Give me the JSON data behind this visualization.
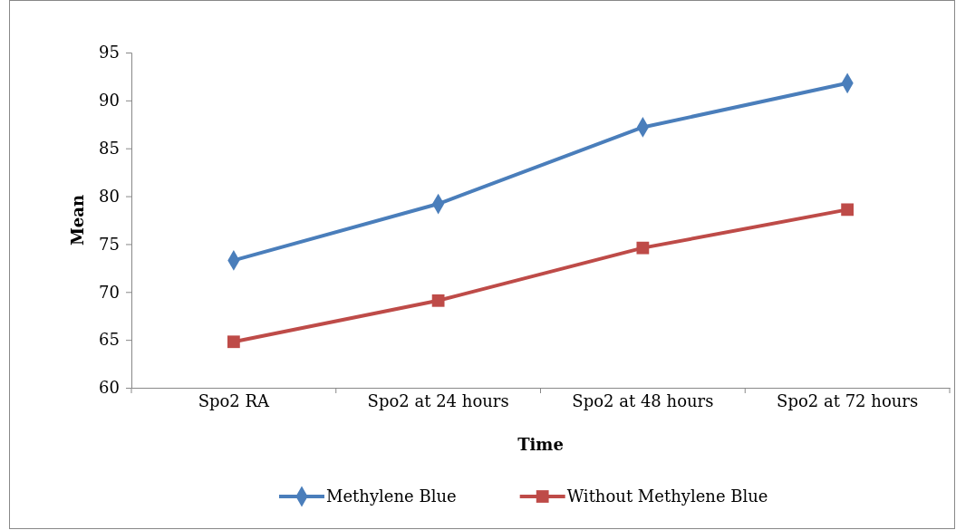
{
  "chart_data": {
    "type": "line",
    "xlabel": "Time",
    "ylabel": "Mean",
    "categories": [
      "Spo2 RA",
      "Spo2 at 24 hours",
      "Spo2 at 48 hours",
      "Spo2 at 72 hours"
    ],
    "series": [
      {
        "name": "Methylene Blue",
        "color": "#4a7ebb",
        "marker": "diamond",
        "values": [
          73.3,
          79.2,
          87.2,
          91.8
        ]
      },
      {
        "name": "Without Methylene Blue",
        "color": "#be4b48",
        "marker": "square",
        "values": [
          64.8,
          69.1,
          74.6,
          78.6
        ]
      }
    ],
    "ylim": [
      60,
      95
    ],
    "yticks": [
      60,
      65,
      70,
      75,
      80,
      85,
      90,
      95
    ],
    "grid": false,
    "legend": "bottom",
    "line_style": "solid"
  }
}
